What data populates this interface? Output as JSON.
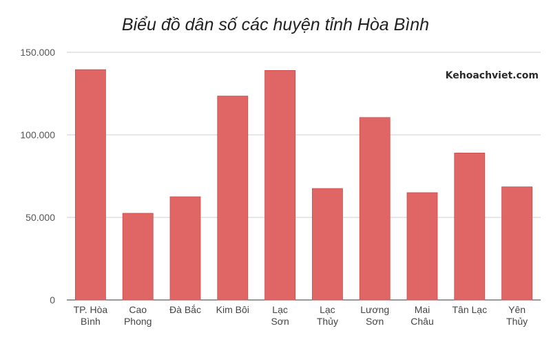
{
  "chart_data": {
    "type": "bar",
    "title": "Biểu đồ dân số các huyện tỉnh Hòa Bình",
    "xlabel": "",
    "ylabel": "",
    "categories": [
      [
        "TP. Hòa",
        "Bình"
      ],
      [
        "Cao",
        "Phong"
      ],
      [
        "Đà Bắc"
      ],
      [
        "Kim Bôi"
      ],
      [
        "Lạc",
        "Sơn"
      ],
      [
        "Lạc",
        "Thủy"
      ],
      [
        "Lương",
        "Sơn"
      ],
      [
        "Mai",
        "Châu"
      ],
      [
        "Tân Lạc"
      ],
      [
        "Yên",
        "Thủy"
      ]
    ],
    "values": [
      139500,
      52500,
      62500,
      123500,
      139000,
      67500,
      110500,
      65000,
      89000,
      68500
    ],
    "ylim": [
      0,
      150000
    ],
    "yticks": [
      0,
      50000,
      100000,
      150000
    ],
    "ytick_labels": [
      "0",
      "50.000",
      "100.000",
      "150.000"
    ],
    "bar_color": "#e06666",
    "grid": true,
    "legend": "none"
  },
  "watermark": "Kehoachviet.com"
}
